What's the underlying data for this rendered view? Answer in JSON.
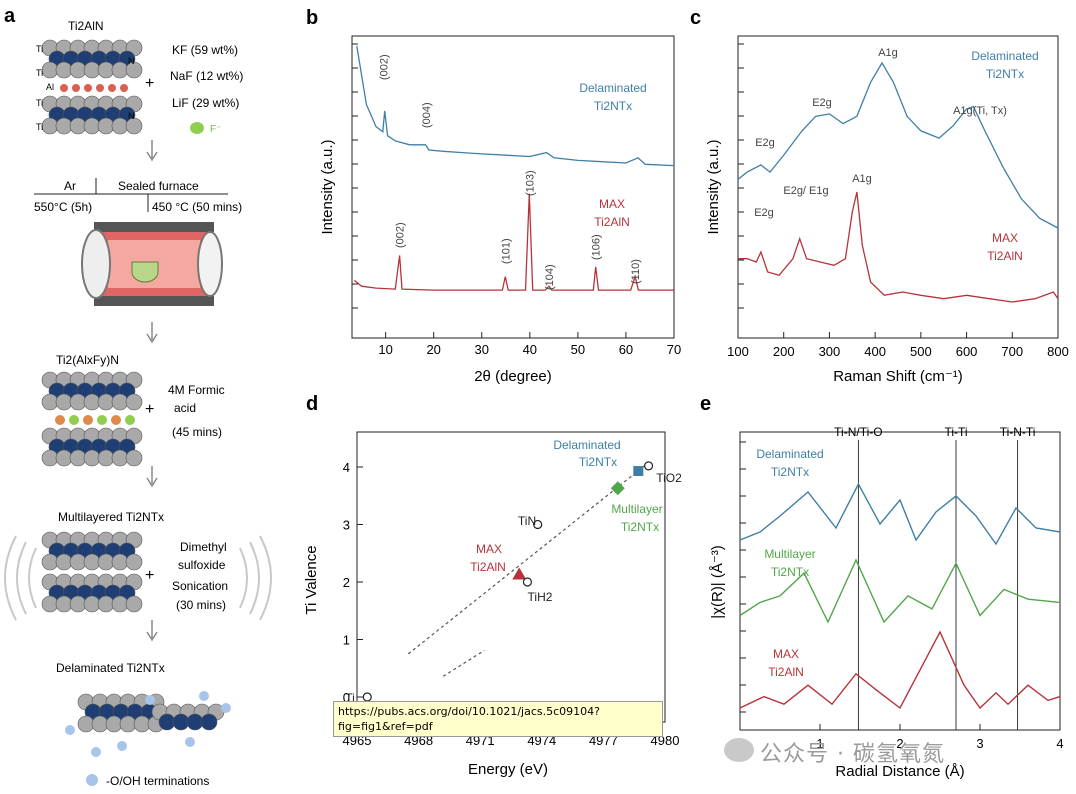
{
  "panel_letters": {
    "a": "a",
    "b": "b",
    "c": "c",
    "d": "d",
    "e": "e"
  },
  "panel_a": {
    "title": "Ti2AlN",
    "atom_ti": "Ti",
    "atom_al": "Al",
    "atom_n": "N",
    "salts": [
      "KF (59 wt%)",
      "NaF (12 wt%)",
      "LiF (29 wt%)"
    ],
    "fluoride": "F⁻",
    "plus": "+",
    "ar": "Ar",
    "sealed_furnace": "Sealed furnace",
    "temp1": "550°C (5h)",
    "temp2": "450 °C (50 mins)",
    "product1": "Ti2(AlxFy)N",
    "acid": [
      "4M Formic",
      "acid",
      "(45 mins)"
    ],
    "product2": "Multilayered Ti2NTx",
    "solvent": [
      "Dimethyl",
      "sulfoxide",
      "Sonication",
      "(30 mins)"
    ],
    "product3": "Delaminated Ti2NTx",
    "legend_terminations": "-O/OH terminations"
  },
  "chart_data": [
    {
      "type": "line",
      "panel": "b",
      "xlabel": "2θ (degree)",
      "ylabel": "Intensity (a.u.)",
      "xlim": [
        3,
        70
      ],
      "xticks": [
        10,
        20,
        30,
        40,
        50,
        60,
        70
      ],
      "series": [
        {
          "name": "Delaminated Ti2NTx",
          "color": "#3f7fa6",
          "x": [
            4,
            6,
            8,
            9.4,
            9.8,
            10.4,
            12,
            15,
            18.3,
            19,
            22,
            26,
            30,
            35,
            40,
            43.5,
            45,
            50,
            55,
            60,
            62.5,
            64,
            70
          ],
          "y": [
            100,
            55,
            38,
            34,
            50,
            31,
            27,
            24,
            24,
            20,
            19,
            18,
            17,
            16,
            15,
            18,
            14,
            12,
            11,
            10,
            14,
            9,
            8
          ]
        },
        {
          "name": "MAX Ti2AlN",
          "color": "#b5343a",
          "x": [
            3.5,
            5,
            8,
            12,
            12.9,
            13.4,
            20,
            30,
            34.3,
            34.9,
            35.5,
            39.1,
            39.9,
            40.6,
            43.2,
            44,
            44.6,
            50,
            53.2,
            53.7,
            54.3,
            61,
            61.9,
            62.6,
            70
          ],
          "y": [
            6,
            3,
            2,
            1.5,
            19,
            1.5,
            1,
            1,
            1,
            8,
            1,
            1,
            51,
            1,
            1,
            3,
            1,
            1,
            1,
            13,
            1,
            1,
            8,
            1,
            1
          ]
        }
      ],
      "peaks": [
        {
          "label": "(002)",
          "x": 9.6
        },
        {
          "label": "(004)",
          "x": 18.4
        },
        {
          "label": "(002)",
          "x": 12.9
        },
        {
          "label": "(101)",
          "x": 34.9
        },
        {
          "label": "(103)",
          "x": 39.9
        },
        {
          "label": "(104)",
          "x": 44.0
        },
        {
          "label": "(106)",
          "x": 53.7
        },
        {
          "label": "(110)",
          "x": 61.9
        }
      ],
      "series_labels": {
        "delaminated": [
          "Delaminated",
          "Ti2NTx"
        ],
        "max": [
          "MAX",
          "Ti2AlN"
        ]
      }
    },
    {
      "type": "line",
      "panel": "c",
      "xlabel": "Raman Shift (cm⁻¹)",
      "ylabel": "Intensity (a.u.)",
      "xlim": [
        100,
        800
      ],
      "xticks": [
        100,
        200,
        300,
        400,
        500,
        600,
        700,
        800
      ],
      "series": [
        {
          "name": "Delaminated Ti2NTx",
          "color": "#3f7fa6",
          "x": [
            100,
            120,
            150,
            170,
            200,
            240,
            270,
            300,
            330,
            360,
            390,
            415,
            440,
            470,
            500,
            540,
            570,
            600,
            615,
            640,
            680,
            720,
            760,
            800
          ],
          "y": [
            40,
            43,
            46,
            43,
            50,
            60,
            66,
            67,
            63,
            66,
            80,
            88,
            80,
            66,
            60,
            57,
            62,
            69,
            70,
            60,
            45,
            32,
            24,
            20
          ]
        },
        {
          "name": "MAX Ti2AlN",
          "color": "#b5343a",
          "x": [
            100,
            120,
            140,
            150,
            165,
            190,
            220,
            235,
            250,
            280,
            310,
            335,
            350,
            360,
            372,
            390,
            420,
            460,
            500,
            550,
            600,
            650,
            700,
            750,
            790,
            800
          ],
          "y": [
            10,
            10,
            9,
            12,
            6,
            5,
            10,
            16,
            10,
            9,
            8,
            10,
            24,
            30,
            14,
            3,
            -1,
            0,
            -1,
            -2,
            -1,
            -2,
            -3,
            -2,
            0,
            -2
          ]
        }
      ],
      "peaks": [
        {
          "label": "E2g",
          "x": 150
        },
        {
          "label": "E2g",
          "x": 270
        },
        {
          "label": "A1g",
          "x": 415
        },
        {
          "label": "A1g(Ti, Tx)",
          "x": 610
        },
        {
          "label": "E2g",
          "x": 150
        },
        {
          "label": "E2g/ E1g",
          "x": 235
        },
        {
          "label": "A1g",
          "x": 360
        }
      ],
      "series_labels": {
        "delaminated": [
          "Delaminated",
          "Ti2NTx"
        ],
        "max": [
          "MAX",
          "Ti2AlN"
        ]
      }
    },
    {
      "type": "scatter",
      "panel": "d",
      "xlabel": "Energy (eV)",
      "ylabel": "Ti Valence",
      "xlim": [
        4965,
        4980
      ],
      "ylim": [
        0,
        4.4
      ],
      "xticks": [
        4965,
        4968,
        4971,
        4974,
        4977,
        4980
      ],
      "yticks": [
        0,
        1,
        2,
        3,
        4
      ],
      "points": [
        {
          "label": "Delaminated Ti2NTx",
          "x": 4978.7,
          "y": 3.93,
          "color": "#3f7fa6",
          "marker": "square"
        },
        {
          "label": "Multilayer Ti2NTx",
          "x": 4977.7,
          "y": 3.63,
          "color": "#52a64a",
          "marker": "diamond"
        },
        {
          "label": "MAX Ti2AlN",
          "x": 4972.9,
          "y": 2.13,
          "color": "#b5343a",
          "marker": "triangle"
        },
        {
          "label": "TiO2",
          "x": 4979.2,
          "y": 4.02,
          "color": "#222222",
          "marker": "circle"
        },
        {
          "label": "TiN",
          "x": 4973.8,
          "y": 3.0,
          "color": "#222222",
          "marker": "circle"
        },
        {
          "label": "TiH2",
          "x": 4973.3,
          "y": 2.0,
          "color": "#222222",
          "marker": "circle"
        },
        {
          "label": "Ti",
          "x": 4965.5,
          "y": 0.0,
          "color": "#222222",
          "marker": "circle"
        }
      ],
      "fit_line": {
        "x": [
          4967.5,
          4979.0
        ],
        "y": [
          0.75,
          4.02
        ]
      }
    },
    {
      "type": "line",
      "panel": "e",
      "xlabel": "Radial Distance (Å)",
      "ylabel": "|χ(R)| (Å⁻³)",
      "xlim": [
        0,
        4
      ],
      "xticks": [
        0,
        1,
        2,
        3,
        4
      ],
      "reference_lines": [
        {
          "label": "Ti-N/Ti-O",
          "x": 1.48
        },
        {
          "label": "Ti-Ti",
          "x": 2.7
        },
        {
          "label": "Ti-N-Ti",
          "x": 3.47
        }
      ],
      "series": [
        {
          "name": "Delaminated Ti2NTx",
          "color": "#3f7fa6",
          "x": [
            0,
            0.25,
            0.5,
            0.85,
            1.2,
            1.48,
            1.75,
            2.0,
            2.2,
            2.45,
            2.7,
            2.95,
            3.2,
            3.45,
            3.7,
            4.0
          ],
          "y": [
            0.9,
            1.0,
            1.2,
            1.5,
            1.05,
            1.6,
            1.1,
            1.4,
            0.9,
            1.25,
            1.45,
            1.2,
            0.85,
            1.3,
            1.05,
            1.0
          ]
        },
        {
          "name": "Multilayer Ti2NTx",
          "color": "#52a64a",
          "x": [
            0,
            0.25,
            0.5,
            0.8,
            1.1,
            1.45,
            1.8,
            2.1,
            2.4,
            2.7,
            3.0,
            3.3,
            3.6,
            4.0
          ],
          "y": [
            0.8,
            1.0,
            1.1,
            1.45,
            0.7,
            1.65,
            0.7,
            1.1,
            0.9,
            1.6,
            0.8,
            1.2,
            1.05,
            1.0
          ]
        },
        {
          "name": "MAX Ti2AlN",
          "color": "#b5343a",
          "x": [
            0,
            0.3,
            0.55,
            0.85,
            1.15,
            1.45,
            1.75,
            2.0,
            2.2,
            2.5,
            2.8,
            3.0,
            3.2,
            3.35,
            3.6,
            3.85,
            4.0
          ],
          "y": [
            0.3,
            0.45,
            0.35,
            0.6,
            0.35,
            0.75,
            0.5,
            0.3,
            0.7,
            1.3,
            0.6,
            0.3,
            0.5,
            0.35,
            0.6,
            0.4,
            0.45
          ]
        }
      ],
      "series_labels": {
        "delaminated": [
          "Delaminated",
          "Ti2NTx"
        ],
        "multilayer": [
          "Multilayer",
          "Ti2NTx"
        ],
        "max": [
          "MAX",
          "Ti2AlN"
        ]
      }
    }
  ],
  "tooltip": {
    "text": "https://pubs.acs.org/doi/10.1021/jacs.5c09104?fig=fig1&ref=pdf"
  },
  "watermark": {
    "text": "公众号 · 碳氢氧氮"
  }
}
